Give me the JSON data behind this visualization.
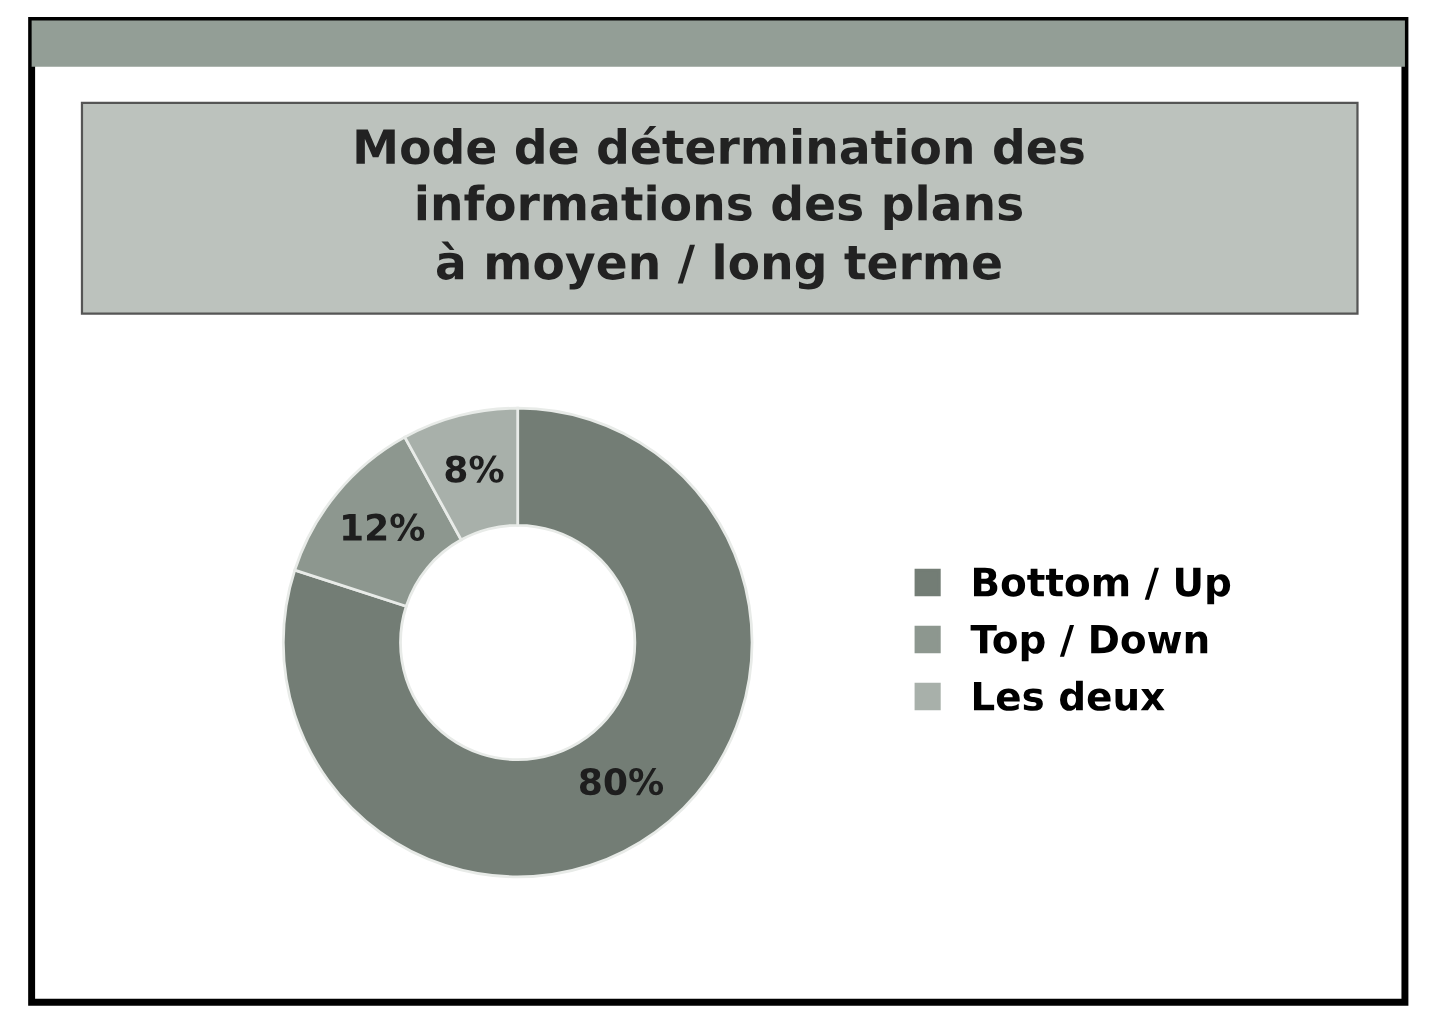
{
  "chart_data": {
    "type": "donut",
    "title": "Mode de détermination des\ninformations des plans\nà moyen / long terme",
    "categories": [
      "Bottom / Up",
      "Top / Down",
      "Les deux"
    ],
    "values": [
      80,
      12,
      8
    ],
    "colors": [
      "#737d75",
      "#8d978f",
      "#a8b0aa"
    ],
    "value_labels": [
      "80%",
      "12%",
      "8%"
    ],
    "legend": "right"
  }
}
